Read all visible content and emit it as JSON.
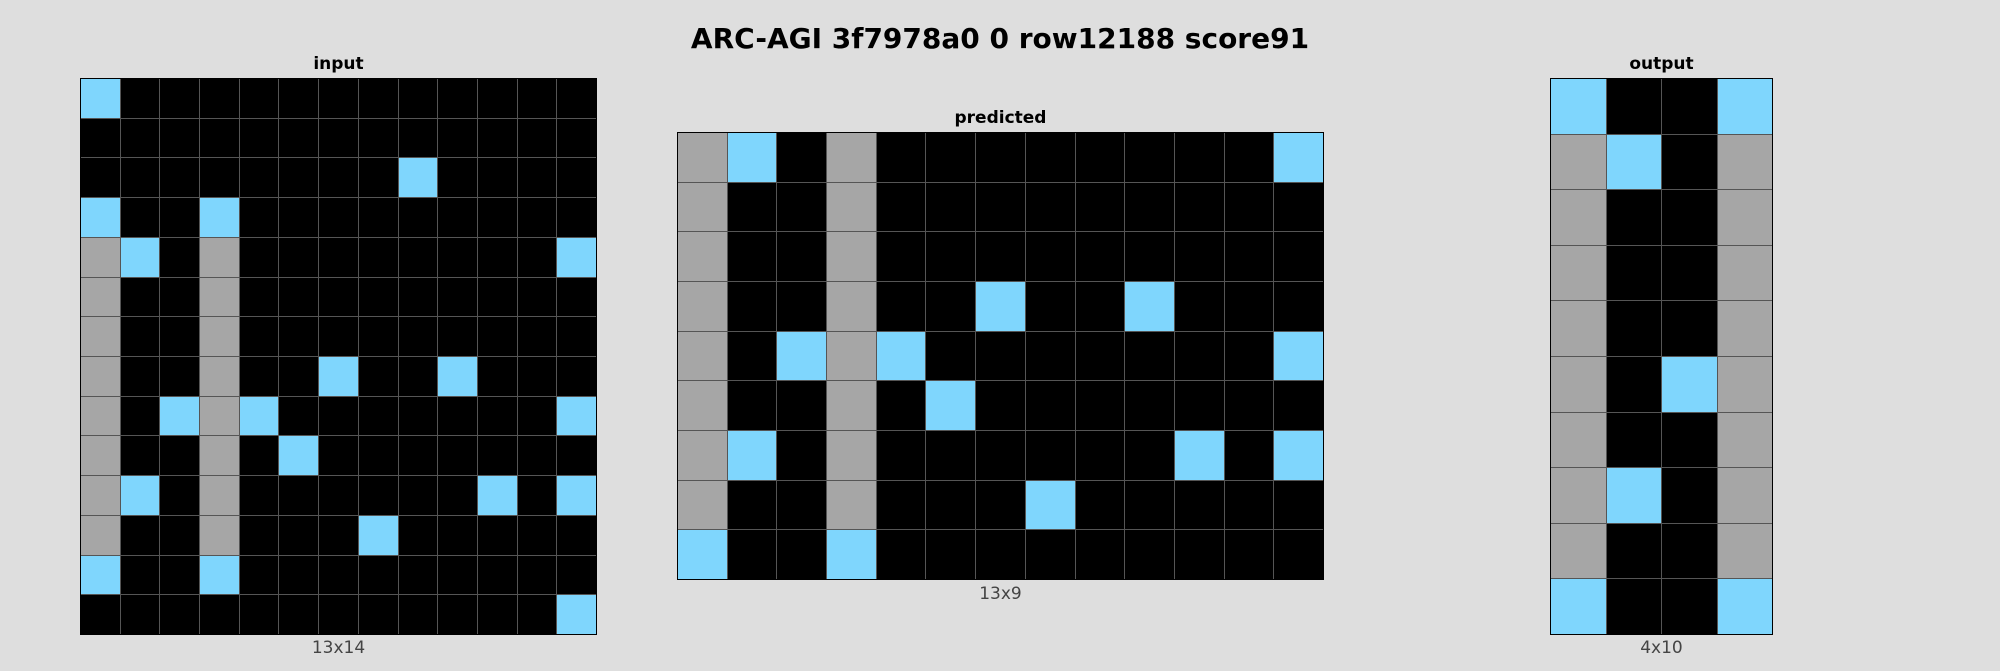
{
  "title": "ARC-AGI 3f7978a0 0 row12188 score91",
  "palette": {
    "0": "#000000",
    "8": "#7fd6fd",
    "5": "#a6a6a6"
  },
  "panels": [
    {
      "key": "input",
      "title": "input",
      "dims": "13x14",
      "grid": [
        [
          8,
          0,
          0,
          0,
          0,
          0,
          0,
          0,
          0,
          0,
          0,
          0,
          0
        ],
        [
          0,
          0,
          0,
          0,
          0,
          0,
          0,
          0,
          0,
          0,
          0,
          0,
          0
        ],
        [
          0,
          0,
          0,
          0,
          0,
          0,
          0,
          0,
          8,
          0,
          0,
          0,
          0
        ],
        [
          8,
          0,
          0,
          8,
          0,
          0,
          0,
          0,
          0,
          0,
          0,
          0,
          0
        ],
        [
          5,
          8,
          0,
          5,
          0,
          0,
          0,
          0,
          0,
          0,
          0,
          0,
          8
        ],
        [
          5,
          0,
          0,
          5,
          0,
          0,
          0,
          0,
          0,
          0,
          0,
          0,
          0
        ],
        [
          5,
          0,
          0,
          5,
          0,
          0,
          0,
          0,
          0,
          0,
          0,
          0,
          0
        ],
        [
          5,
          0,
          0,
          5,
          0,
          0,
          8,
          0,
          0,
          8,
          0,
          0,
          0
        ],
        [
          5,
          0,
          8,
          5,
          8,
          0,
          0,
          0,
          0,
          0,
          0,
          0,
          8
        ],
        [
          5,
          0,
          0,
          5,
          0,
          8,
          0,
          0,
          0,
          0,
          0,
          0,
          0
        ],
        [
          5,
          8,
          0,
          5,
          0,
          0,
          0,
          0,
          0,
          0,
          8,
          0,
          8
        ],
        [
          5,
          0,
          0,
          5,
          0,
          0,
          0,
          8,
          0,
          0,
          0,
          0,
          0
        ],
        [
          8,
          0,
          0,
          8,
          0,
          0,
          0,
          0,
          0,
          0,
          0,
          0,
          0
        ],
        [
          0,
          0,
          0,
          0,
          0,
          0,
          0,
          0,
          0,
          0,
          0,
          0,
          8
        ]
      ]
    },
    {
      "key": "predicted",
      "title": "predicted",
      "dims": "13x9",
      "grid": [
        [
          5,
          8,
          0,
          5,
          0,
          0,
          0,
          0,
          0,
          0,
          0,
          0,
          8
        ],
        [
          5,
          0,
          0,
          5,
          0,
          0,
          0,
          0,
          0,
          0,
          0,
          0,
          0
        ],
        [
          5,
          0,
          0,
          5,
          0,
          0,
          0,
          0,
          0,
          0,
          0,
          0,
          0
        ],
        [
          5,
          0,
          0,
          5,
          0,
          0,
          8,
          0,
          0,
          8,
          0,
          0,
          0
        ],
        [
          5,
          0,
          8,
          5,
          8,
          0,
          0,
          0,
          0,
          0,
          0,
          0,
          8
        ],
        [
          5,
          0,
          0,
          5,
          0,
          8,
          0,
          0,
          0,
          0,
          0,
          0,
          0
        ],
        [
          5,
          8,
          0,
          5,
          0,
          0,
          0,
          0,
          0,
          0,
          8,
          0,
          8
        ],
        [
          5,
          0,
          0,
          5,
          0,
          0,
          0,
          8,
          0,
          0,
          0,
          0,
          0
        ],
        [
          8,
          0,
          0,
          8,
          0,
          0,
          0,
          0,
          0,
          0,
          0,
          0,
          0
        ]
      ]
    },
    {
      "key": "output",
      "title": "output",
      "dims": "4x10",
      "grid": [
        [
          8,
          0,
          0,
          8
        ],
        [
          5,
          8,
          0,
          5
        ],
        [
          5,
          0,
          0,
          5
        ],
        [
          5,
          0,
          0,
          5
        ],
        [
          5,
          0,
          0,
          5
        ],
        [
          5,
          0,
          8,
          5
        ],
        [
          5,
          0,
          0,
          5
        ],
        [
          5,
          8,
          0,
          5
        ],
        [
          5,
          0,
          0,
          5
        ],
        [
          8,
          0,
          0,
          8
        ]
      ]
    }
  ]
}
